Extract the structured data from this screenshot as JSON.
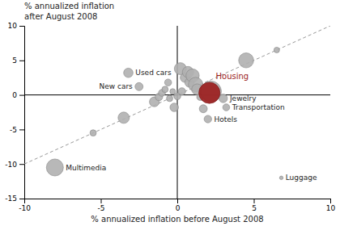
{
  "chart_data": {
    "type": "scatter",
    "title": "% annualized inflation\nafter August 2008",
    "x_label": "% annualized inflation before August 2008",
    "xlim": [
      -10,
      10
    ],
    "ylim": [
      -15,
      10
    ],
    "xticks": [
      -10,
      -5,
      0,
      5,
      10
    ],
    "yticks": [
      -15,
      -10,
      -5,
      0,
      5,
      10
    ],
    "series": [
      {
        "type": "line",
        "line_style": "dashed",
        "color": "#999999",
        "x": [
          -10,
          10
        ],
        "values": [
          -10,
          10
        ]
      },
      {
        "type": "line",
        "line_style": "solid",
        "color": "#000000",
        "x": [
          -10,
          10
        ],
        "values": [
          0,
          0
        ]
      },
      {
        "type": "line",
        "line_style": "solid",
        "color": "#000000",
        "x": [
          0,
          0
        ],
        "values": [
          -15,
          10
        ]
      },
      {
        "type": "scatter",
        "color": "#b0b0b0",
        "x": [
          -8.0,
          -5.5,
          -3.5,
          -3.2,
          -2.5,
          -1.5,
          -1.2,
          -1.0,
          -0.8,
          -0.6,
          -0.5,
          -0.3,
          -0.2,
          0.0,
          0.2,
          0.3,
          0.5,
          0.7,
          0.8,
          1.0,
          1.2,
          1.3,
          1.5,
          1.7,
          2.0,
          2.2,
          3.0,
          3.2,
          4.5,
          6.5,
          6.8
        ],
        "values": [
          -10.5,
          -5.5,
          -3.3,
          3.2,
          1.2,
          -1.0,
          -0.3,
          0.3,
          0.8,
          1.8,
          -0.5,
          0.5,
          -1.8,
          -0.2,
          3.8,
          0.5,
          2.5,
          3.3,
          1.8,
          2.8,
          1.5,
          0.8,
          -0.3,
          -2.0,
          -3.5,
          0.5,
          -0.5,
          -1.8,
          5.0,
          6.5,
          -12.0
        ],
        "sizes": [
          180,
          25,
          80,
          55,
          40,
          60,
          35,
          30,
          25,
          30,
          25,
          20,
          45,
          30,
          90,
          35,
          55,
          80,
          55,
          110,
          130,
          75,
          30,
          40,
          35,
          270,
          45,
          30,
          140,
          20,
          8
        ],
        "labels": [
          "Multimedia",
          null,
          null,
          "Used cars",
          "New cars",
          null,
          null,
          null,
          null,
          null,
          null,
          null,
          null,
          null,
          null,
          null,
          null,
          null,
          null,
          null,
          null,
          null,
          null,
          null,
          "Hotels",
          null,
          "Jewelry",
          "Transportation",
          null,
          null,
          "Luggage"
        ]
      },
      {
        "type": "scatter",
        "color": "#9b1c1c",
        "x": [
          2.1
        ],
        "values": [
          0.3
        ],
        "sizes": [
          280
        ],
        "labels": [
          "Housing"
        ]
      }
    ]
  }
}
